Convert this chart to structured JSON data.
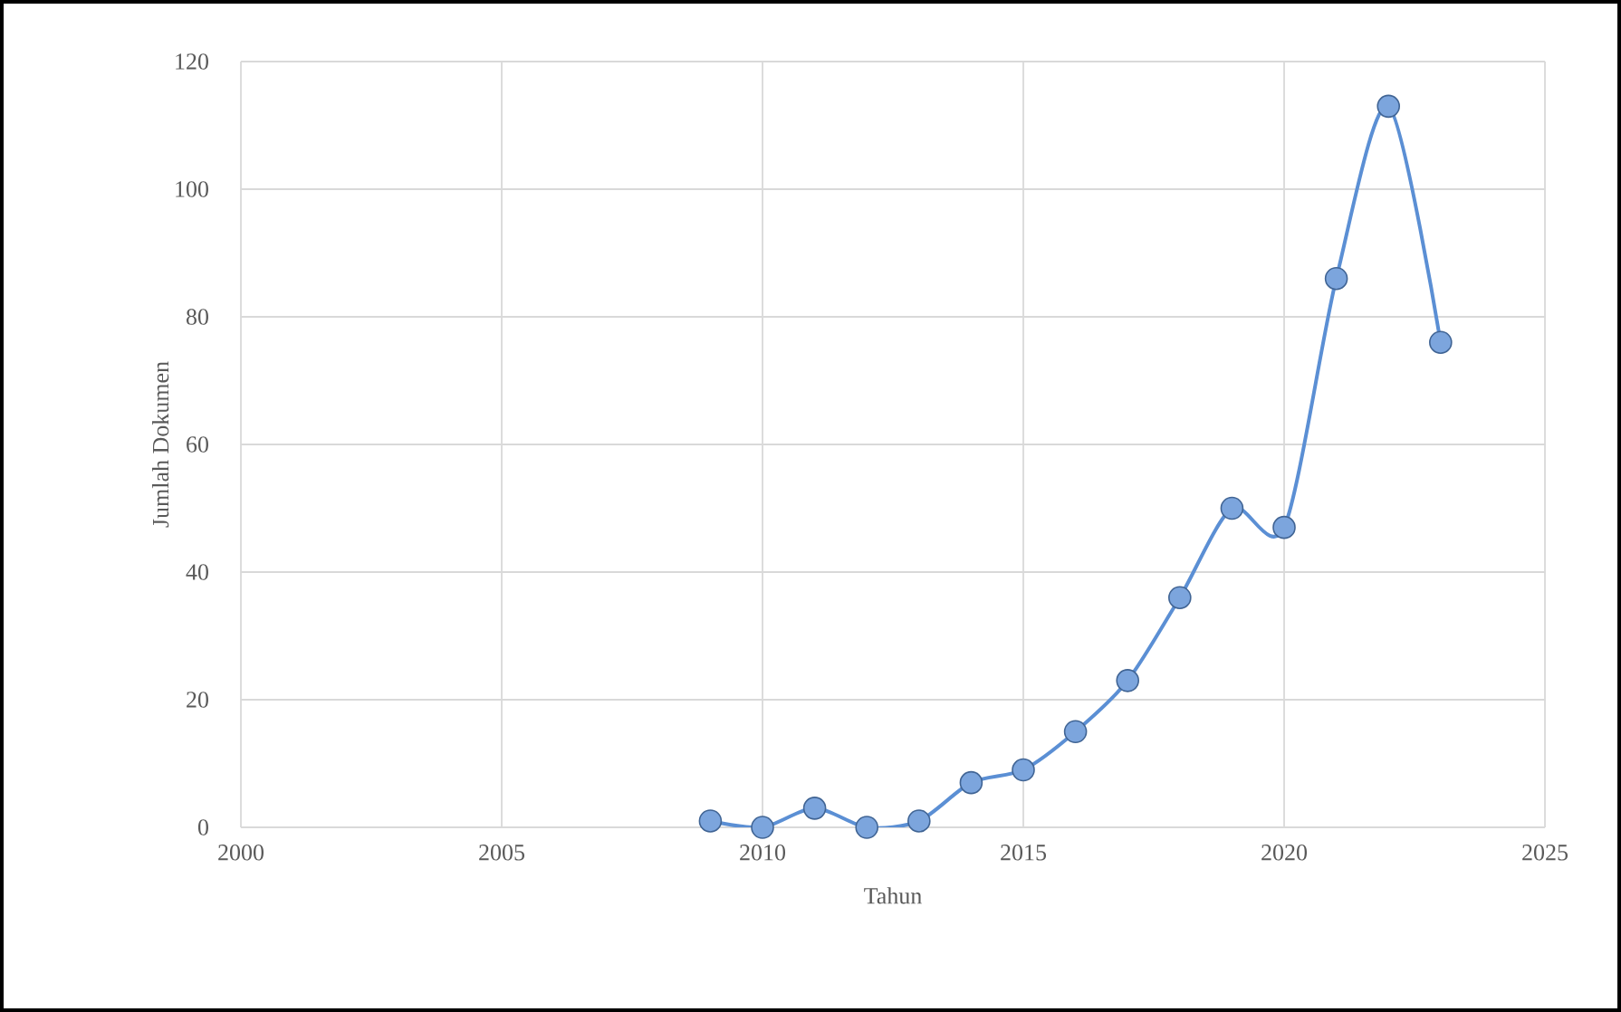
{
  "chart_data": {
    "type": "line",
    "xlabel": "Tahun",
    "ylabel": "Jumlah Dokumen",
    "x": [
      2009,
      2010,
      2011,
      2012,
      2013,
      2014,
      2015,
      2016,
      2017,
      2018,
      2019,
      2020,
      2021,
      2022,
      2023
    ],
    "series": [
      {
        "color": "#5b8fd4",
        "values": [
          1,
          0,
          3,
          0,
          1,
          7,
          9,
          15,
          23,
          36,
          50,
          47,
          86,
          113,
          76
        ]
      }
    ],
    "xlim": [
      2000,
      2025
    ],
    "xticks": [
      2000,
      2005,
      2010,
      2015,
      2020,
      2025
    ],
    "ylim": [
      0,
      120
    ],
    "yticks": [
      0,
      20,
      40,
      60,
      80,
      100,
      120
    ],
    "grid": true,
    "marker": "circle",
    "line_style": "solid"
  }
}
